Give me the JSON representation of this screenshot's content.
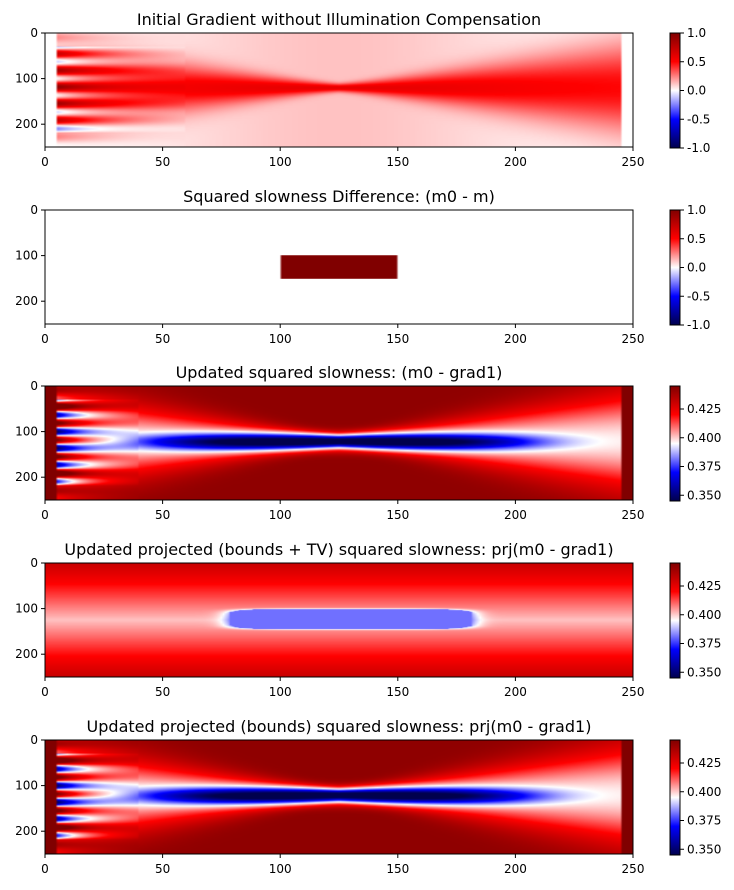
{
  "chart_data": [
    {
      "type": "heatmap",
      "title": "Initial Gradient without Illumination Compensation",
      "xlabel": "",
      "ylabel": "",
      "xlim": [
        0,
        250
      ],
      "ylim": [
        250,
        0
      ],
      "xticks": [
        0,
        50,
        100,
        150,
        200,
        250
      ],
      "yticks": [
        0,
        100,
        200
      ],
      "colormap": "seismic",
      "clim": [
        -1.0,
        1.0
      ],
      "cbar_ticks": [
        "1.0",
        "0.5",
        "0.0",
        "-0.5",
        "-1.0"
      ],
      "cbar_tick_values": [
        1.0,
        0.5,
        0.0,
        -0.5,
        -1.0
      ],
      "content": "gradient",
      "source_x_range": [
        5,
        245
      ],
      "anomaly_center_x": 125
    },
    {
      "type": "heatmap",
      "title": "Squared slowness Difference: (m0 - m)",
      "xlabel": "",
      "ylabel": "",
      "xlim": [
        0,
        250
      ],
      "ylim": [
        250,
        0
      ],
      "xticks": [
        0,
        50,
        100,
        150,
        200,
        250
      ],
      "yticks": [
        0,
        100,
        200
      ],
      "colormap": "seismic",
      "clim": [
        -1.0,
        1.0
      ],
      "cbar_ticks": [
        "1.0",
        "0.5",
        "0.0",
        "-0.5",
        "-1.0"
      ],
      "cbar_tick_values": [
        1.0,
        0.5,
        0.0,
        -0.5,
        -1.0
      ],
      "content": "box",
      "anomaly_box": {
        "x": [
          100,
          150
        ],
        "y": [
          100,
          150
        ],
        "value": 1.0
      }
    },
    {
      "type": "heatmap",
      "title": "Updated squared slowness: (m0 - grad1)",
      "xlabel": "",
      "ylabel": "",
      "xlim": [
        0,
        250
      ],
      "ylim": [
        250,
        0
      ],
      "xticks": [
        0,
        50,
        100,
        150,
        200,
        250
      ],
      "yticks": [
        0,
        100,
        200
      ],
      "colormap": "seismic",
      "clim": [
        0.345,
        0.445
      ],
      "cbar_ticks": [
        "0.425",
        "0.400",
        "0.375",
        "0.350"
      ],
      "cbar_tick_values": [
        0.425,
        0.4,
        0.375,
        0.35
      ],
      "content": "update"
    },
    {
      "type": "heatmap",
      "title": "Updated projected (bounds + TV) squared slowness: prj(m0 - grad1)",
      "xlabel": "",
      "ylabel": "",
      "xlim": [
        0,
        250
      ],
      "ylim": [
        250,
        0
      ],
      "xticks": [
        0,
        50,
        100,
        150,
        200,
        250
      ],
      "yticks": [
        0,
        100,
        200
      ],
      "colormap": "seismic",
      "clim": [
        0.345,
        0.445
      ],
      "cbar_ticks": [
        "0.425",
        "0.400",
        "0.375",
        "0.350"
      ],
      "cbar_tick_values": [
        0.425,
        0.4,
        0.375,
        0.35
      ],
      "content": "tv"
    },
    {
      "type": "heatmap",
      "title": "Updated projected (bounds) squared slowness: prj(m0 - grad1)",
      "xlabel": "",
      "ylabel": "",
      "xlim": [
        0,
        250
      ],
      "ylim": [
        250,
        0
      ],
      "xticks": [
        0,
        50,
        100,
        150,
        200,
        250
      ],
      "yticks": [
        0,
        100,
        200
      ],
      "colormap": "seismic",
      "clim": [
        0.345,
        0.445
      ],
      "cbar_ticks": [
        "0.425",
        "0.400",
        "0.375",
        "0.350"
      ],
      "cbar_tick_values": [
        0.425,
        0.4,
        0.375,
        0.35
      ],
      "content": "update"
    }
  ]
}
